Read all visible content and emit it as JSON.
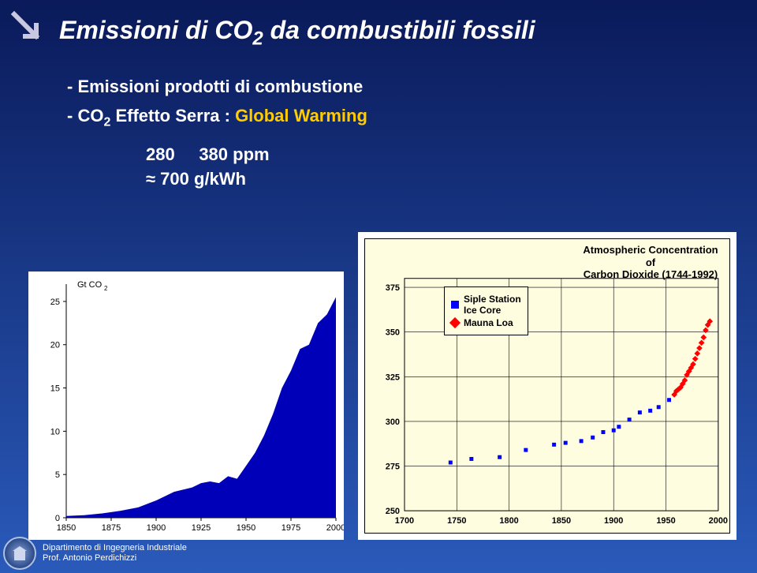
{
  "title": {
    "pre": "Emissioni di CO",
    "sub": "2",
    "post": " da combustibili fossili"
  },
  "bullets": {
    "line1_pre": "-  Emissioni   prodotti di combustione",
    "line2_pre": "-  CO",
    "line2_sub": "2",
    "line2_mid": "      Effetto Serra :  ",
    "line2_gw": "Global Warming"
  },
  "detail": {
    "line1_a": "280",
    "line1_arrow": " → ",
    "line1_b": "380 ppm",
    "line2": "≈ 700 g/kWh"
  },
  "chart_left": {
    "type": "area",
    "ylabel": "Gt CO",
    "ylabel_sub": "2",
    "x_ticks": [
      1850,
      1875,
      1900,
      1925,
      1950,
      1975,
      2000
    ],
    "y_ticks": [
      0,
      5,
      10,
      15,
      20,
      25
    ],
    "xlim": [
      1850,
      2000
    ],
    "ylim": [
      0,
      27
    ],
    "fill_color": "#0000b8",
    "background": "#ffffff",
    "data": [
      [
        1850,
        0.2
      ],
      [
        1860,
        0.3
      ],
      [
        1870,
        0.5
      ],
      [
        1880,
        0.8
      ],
      [
        1890,
        1.2
      ],
      [
        1900,
        2.0
      ],
      [
        1910,
        3.0
      ],
      [
        1920,
        3.5
      ],
      [
        1925,
        4.0
      ],
      [
        1930,
        4.2
      ],
      [
        1935,
        4.0
      ],
      [
        1940,
        4.8
      ],
      [
        1945,
        4.5
      ],
      [
        1950,
        6.0
      ],
      [
        1955,
        7.5
      ],
      [
        1960,
        9.5
      ],
      [
        1965,
        12.0
      ],
      [
        1970,
        15.0
      ],
      [
        1975,
        17.0
      ],
      [
        1980,
        19.5
      ],
      [
        1985,
        20.0
      ],
      [
        1990,
        22.5
      ],
      [
        1995,
        23.5
      ],
      [
        2000,
        25.5
      ]
    ]
  },
  "chart_right": {
    "type": "scatter",
    "title_line1": "Atmospheric Concentration of",
    "title_line2": "Carbon Dioxide (1744-1992)",
    "x_ticks": [
      1700,
      1750,
      1800,
      1850,
      1900,
      1950,
      2000
    ],
    "y_ticks": [
      250,
      275,
      300,
      325,
      350,
      375
    ],
    "xlim": [
      1700,
      2000
    ],
    "ylim": [
      250,
      380
    ],
    "background": "#fffde0",
    "grid_color": "#000000",
    "legend": {
      "siple_label": "Siple Station",
      "siple_label2": "Ice Core",
      "mauna_label": "Mauna Loa"
    },
    "siple_color": "#0000ff",
    "mauna_color": "#ff0000",
    "siple_marker": "square",
    "mauna_marker": "diamond",
    "marker_size": 5,
    "siple_points": [
      [
        1744,
        277
      ],
      [
        1764,
        279
      ],
      [
        1791,
        280
      ],
      [
        1816,
        284
      ],
      [
        1843,
        287
      ],
      [
        1854,
        288
      ],
      [
        1869,
        289
      ],
      [
        1880,
        291
      ],
      [
        1890,
        294
      ],
      [
        1900,
        295
      ],
      [
        1905,
        297
      ],
      [
        1915,
        301
      ],
      [
        1925,
        305
      ],
      [
        1935,
        306
      ],
      [
        1943,
        308
      ],
      [
        1953,
        312
      ]
    ],
    "mauna_points": [
      [
        1958,
        315
      ],
      [
        1960,
        317
      ],
      [
        1962,
        318
      ],
      [
        1964,
        319
      ],
      [
        1966,
        321
      ],
      [
        1968,
        323
      ],
      [
        1970,
        326
      ],
      [
        1972,
        328
      ],
      [
        1974,
        330
      ],
      [
        1976,
        332
      ],
      [
        1978,
        335
      ],
      [
        1980,
        338
      ],
      [
        1982,
        341
      ],
      [
        1984,
        344
      ],
      [
        1986,
        347
      ],
      [
        1988,
        351
      ],
      [
        1990,
        354
      ],
      [
        1992,
        356
      ]
    ]
  },
  "footer": {
    "line1": "Dipartimento di Ingegneria Industriale",
    "line2": "Prof. Antonio Perdichizzi"
  }
}
